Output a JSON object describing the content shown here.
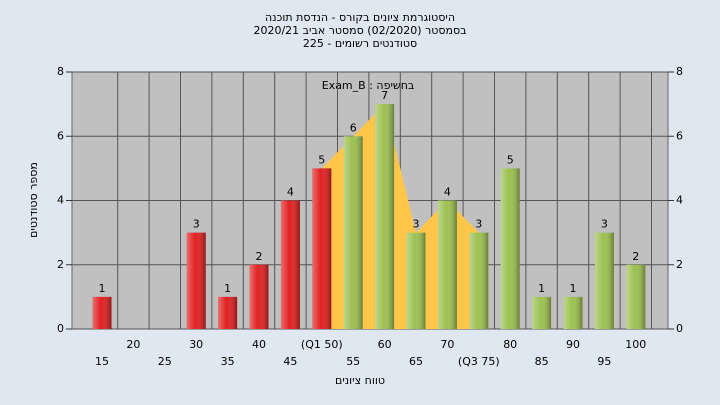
{
  "chart_data": {
    "type": "bar",
    "title": [
      "היסטוגרמת ציונים בקורס - הנדסת תוכנה",
      "בסמסטר  (02/2020)  סמסטר אביב 2020/21",
      "סטודנטים רשומים - 225"
    ],
    "annotation": "בחשיפה : Exam_B",
    "x_label": "טווח ציונים",
    "y_label": "מספר סטודנטים",
    "categories": [
      "15",
      "20",
      "25",
      "30",
      "35",
      "40",
      "45",
      "(Q1 50)",
      "55",
      "60",
      "65",
      "70",
      "(Q3 75)",
      "80",
      "85",
      "90",
      "95",
      "100"
    ],
    "values": [
      1,
      0,
      0,
      3,
      1,
      2,
      4,
      5,
      6,
      7,
      3,
      4,
      3,
      5,
      1,
      1,
      3,
      2
    ],
    "colors": [
      "#e02020",
      "#e02020",
      "#e02020",
      "#e02020",
      "#e02020",
      "#e02020",
      "#e02020",
      "#e02020",
      "#9cc050",
      "#9cc050",
      "#9cc050",
      "#9cc050",
      "#9cc050",
      "#9cc050",
      "#9cc050",
      "#9cc050",
      "#9cc050",
      "#9cc050"
    ],
    "ylim": [
      0,
      8
    ],
    "yticks": [
      0,
      2,
      4,
      6,
      8
    ],
    "grid": true
  }
}
